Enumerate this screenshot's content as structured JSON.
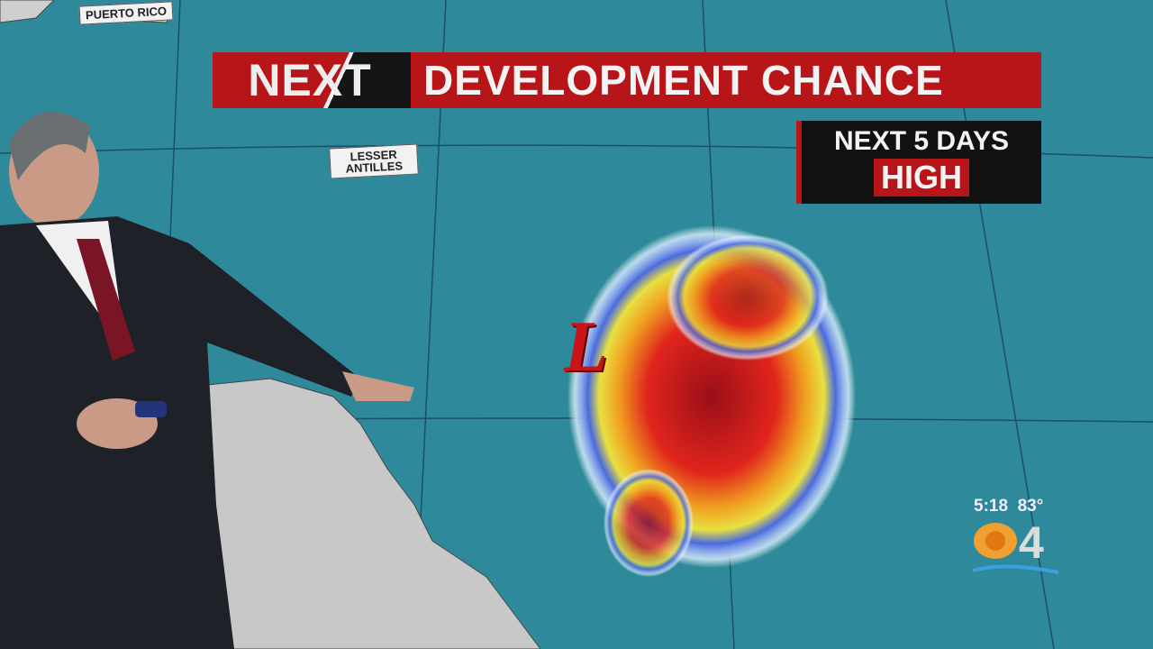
{
  "banner": {
    "logo": "NEXT",
    "title": "DEVELOPMENT CHANCE"
  },
  "forecast": {
    "period": "NEXT 5 DAYS",
    "level": "HIGH"
  },
  "map": {
    "labels": [
      "PUERTO RICO",
      "LESSER ANTILLES"
    ],
    "low_symbol": "L"
  },
  "station": {
    "time": "5:18",
    "temperature": "83°",
    "logo": "CBS 4"
  },
  "colors": {
    "accent": "#b81519",
    "ocean": "#2e8a9a",
    "land": "#c8c8c8"
  }
}
